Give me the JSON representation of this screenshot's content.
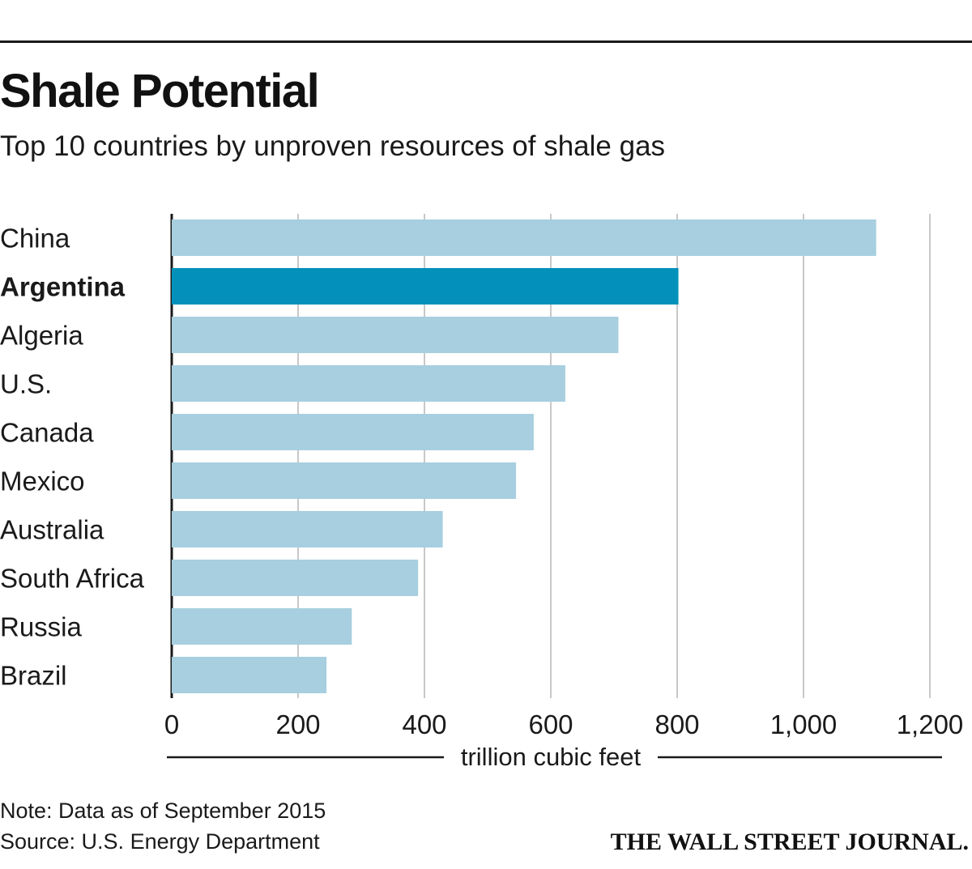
{
  "header": {
    "title": "Shale Potential",
    "subtitle": "Top 10 countries by unproven resources of shale gas"
  },
  "chart_data": {
    "type": "bar",
    "orientation": "horizontal",
    "title": "Shale Potential",
    "subtitle": "Top 10 countries by unproven resources of shale gas",
    "categories": [
      "China",
      "Argentina",
      "Algeria",
      "U.S.",
      "Canada",
      "Mexico",
      "Australia",
      "South Africa",
      "Russia",
      "Brazil"
    ],
    "values": [
      1115,
      802,
      707,
      623,
      573,
      545,
      429,
      390,
      285,
      245
    ],
    "highlight": "Argentina",
    "xlabel": "trillion cubic feet",
    "ylabel": "",
    "xlim": [
      0,
      1200
    ],
    "ticks": [
      0,
      200,
      400,
      600,
      800,
      1000,
      1200
    ],
    "tick_labels": [
      "0",
      "200",
      "400",
      "600",
      "800",
      "1,000",
      "1,200"
    ],
    "grid": true,
    "colors": {
      "bar": "#a7cfdf",
      "highlight": "#0391bb",
      "grid": "#c8c8c8",
      "axis": "#1a1a1a",
      "text": "#1a1a1a"
    }
  },
  "footer": {
    "note": "Note: Data as of September 2015",
    "source": "Source: U.S. Energy Department",
    "publisher": "THE WALL STREET JOURNAL."
  }
}
